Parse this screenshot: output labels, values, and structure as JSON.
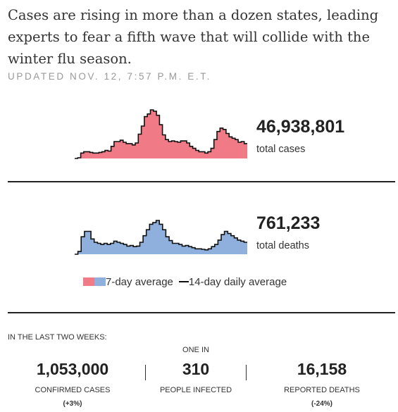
{
  "headline": "Cases are rising in more than a dozen states, leading experts to fear a fifth wave that will collide with the winter flu season.",
  "updated": "UPDATED NOV. 12, 7:57 P.M. E.T.",
  "colors": {
    "cases": "#f07b86",
    "deaths": "#8fb0dc",
    "line": "#111111"
  },
  "cases_summary": {
    "number": "46,938,801",
    "label": "total cases"
  },
  "deaths_summary": {
    "number": "761,233",
    "label": "total deaths"
  },
  "legend": {
    "seven_day": "7-day average",
    "fourteen_day": "14-day daily average"
  },
  "chart_data": [
    {
      "type": "area",
      "series_kind": "cases",
      "values": [
        0,
        1,
        8,
        10,
        10,
        9,
        8,
        8,
        9,
        10,
        12,
        11,
        18,
        25,
        25,
        27,
        24,
        22,
        22,
        20,
        23,
        36,
        48,
        62,
        66,
        72,
        70,
        64,
        50,
        35,
        28,
        25,
        26,
        25,
        24,
        26,
        26,
        23,
        18,
        15,
        12,
        10,
        10,
        8,
        10,
        15,
        28,
        40,
        45,
        43,
        37,
        32,
        30,
        28,
        24,
        25,
        22
      ]
    },
    {
      "type": "area",
      "series_kind": "deaths",
      "values": [
        0,
        5,
        32,
        42,
        42,
        28,
        22,
        20,
        18,
        20,
        18,
        20,
        24,
        22,
        20,
        18,
        15,
        16,
        14,
        15,
        22,
        34,
        45,
        55,
        58,
        62,
        55,
        45,
        32,
        25,
        20,
        20,
        18,
        15,
        16,
        14,
        12,
        10,
        10,
        9,
        8,
        10,
        14,
        18,
        26,
        36,
        42,
        38,
        34,
        30,
        26,
        24,
        22
      ]
    }
  ],
  "period_label": "IN THE LAST TWO WEEKS:",
  "stats": [
    {
      "pre": "",
      "number": "1,053,000",
      "caption": "CONFIRMED CASES",
      "change": "(+3%)"
    },
    {
      "pre": "ONE IN",
      "number": "310",
      "caption": "PEOPLE INFECTED",
      "change": ""
    },
    {
      "pre": "",
      "number": "16,158",
      "caption": "REPORTED DEATHS",
      "change": "(-24%)"
    }
  ]
}
